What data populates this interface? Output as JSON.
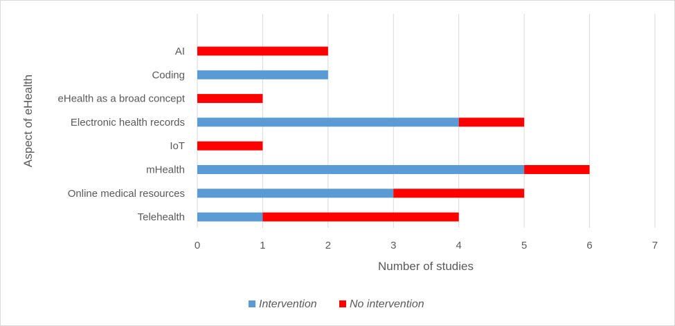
{
  "chart_data": {
    "type": "bar",
    "orientation": "horizontal",
    "stacked": true,
    "title": "",
    "xlabel": "Number of studies",
    "ylabel": "Aspect of eHealth",
    "xlim": [
      0,
      7
    ],
    "xticks": [
      "0",
      "1",
      "2",
      "3",
      "4",
      "5",
      "6",
      "7"
    ],
    "grid": true,
    "legend_position": "bottom",
    "categories": [
      "AI",
      "Coding",
      "eHealth as a broad concept",
      "Electronic health records",
      "IoT",
      "mHealth",
      "Online medical resources",
      "Telehealth"
    ],
    "series": [
      {
        "name": "Intervention",
        "color": "#5b9bd5",
        "values": [
          0,
          2,
          0,
          4,
          0,
          5,
          3,
          1
        ]
      },
      {
        "name": "No intervention",
        "color": "#ff0000",
        "values": [
          2,
          0,
          1,
          1,
          1,
          1,
          2,
          3
        ]
      }
    ]
  }
}
